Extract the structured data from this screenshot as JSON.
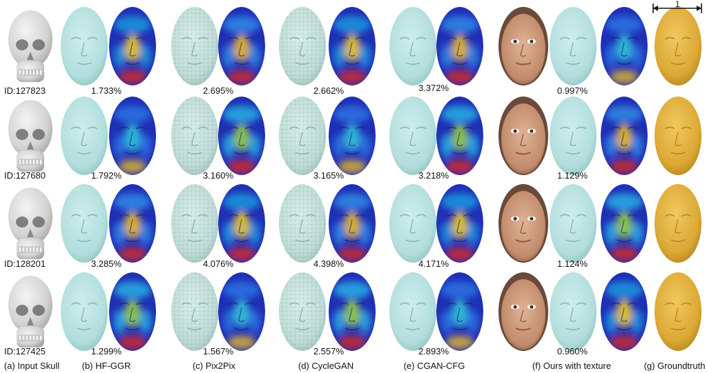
{
  "rows": [
    {
      "id": "ID:127823",
      "errors": [
        "1.733%",
        "2.695%",
        "2.662%",
        "3.372%",
        "0.997%"
      ]
    },
    {
      "id": "ID:127680",
      "errors": [
        "1.792%",
        "3.160%",
        "3.165%",
        "3.218%",
        "1.129%"
      ]
    },
    {
      "id": "ID:128201",
      "errors": [
        "3.285%",
        "4.076%",
        "4.398%",
        "4.171%",
        "1.124%"
      ]
    },
    {
      "id": "ID:127425",
      "errors": [
        "1.299%",
        "1.567%",
        "2.557%",
        "2.893%",
        "0.960%"
      ]
    }
  ],
  "captions": [
    "(a) Input Skull",
    "(b) HF-GGR",
    "(c) Pix2Pix",
    "(d) CycleGAN",
    "(e) CGAN-CFG",
    "(f) Ours with texture",
    "(g) Groundtruth"
  ],
  "scale_label": "1",
  "colors": {
    "skull": "#dadada",
    "face_mesh": "#b8e4e2",
    "groundtruth": "#e2b13c",
    "heatmap_low": "#1f2fb5",
    "heatmap_high": "#e8281e",
    "skin": "#c99a7c"
  }
}
